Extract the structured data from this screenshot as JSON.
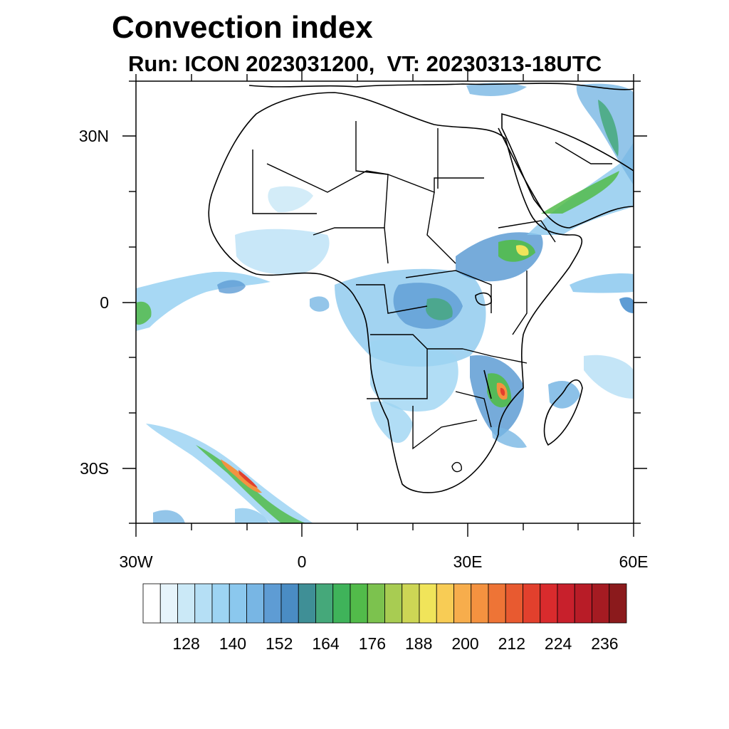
{
  "title": "Convection index",
  "subtitle": "Run: ICON 2023031200,  VT: 20230313-18UTC",
  "axes": {
    "lat_ticks": [
      {
        "value": 30,
        "label": "30N"
      },
      {
        "value": 0,
        "label": "0"
      },
      {
        "value": -30,
        "label": "30S"
      }
    ],
    "lon_ticks": [
      {
        "value": -30,
        "label": "30W"
      },
      {
        "value": 0,
        "label": "0"
      },
      {
        "value": 30,
        "label": "30E"
      },
      {
        "value": 60,
        "label": "60E"
      }
    ],
    "lon_range": [
      -30,
      60
    ],
    "lat_range": [
      -40,
      40
    ]
  },
  "colorbar": {
    "colors": [
      "#ffffff",
      "#e6f4fb",
      "#cbe9f7",
      "#b5dff5",
      "#9dd4f3",
      "#8bc8ee",
      "#78b6e4",
      "#5e9cd4",
      "#4a8cc4",
      "#3f8f96",
      "#45a87a",
      "#3fb35a",
      "#52bb4a",
      "#7cc24e",
      "#a8cc52",
      "#cdd655",
      "#f0e45a",
      "#f8cc55",
      "#f7ad4c",
      "#f49240",
      "#ee7436",
      "#e85a30",
      "#e2402d",
      "#d92b2d",
      "#c8202c",
      "#b81c27",
      "#a51b22",
      "#8b1a1c"
    ],
    "tick_labels": [
      "128",
      "140",
      "152",
      "164",
      "176",
      "188",
      "200",
      "212",
      "224",
      "236"
    ]
  },
  "chart_data": {
    "type": "map",
    "title": "Convection index",
    "subtitle": "Run: ICON 2023031200,  VT: 20230313-18UTC",
    "x_axis": {
      "labels": [
        "30W",
        "0",
        "30E",
        "60E"
      ],
      "range": [
        -30,
        60
      ]
    },
    "y_axis": {
      "labels": [
        "30N",
        "0",
        "30S"
      ],
      "range": [
        -40,
        40
      ]
    },
    "colorbar_labels": [
      "128",
      "140",
      "152",
      "164",
      "176",
      "188",
      "200",
      "212",
      "224",
      "236"
    ]
  }
}
